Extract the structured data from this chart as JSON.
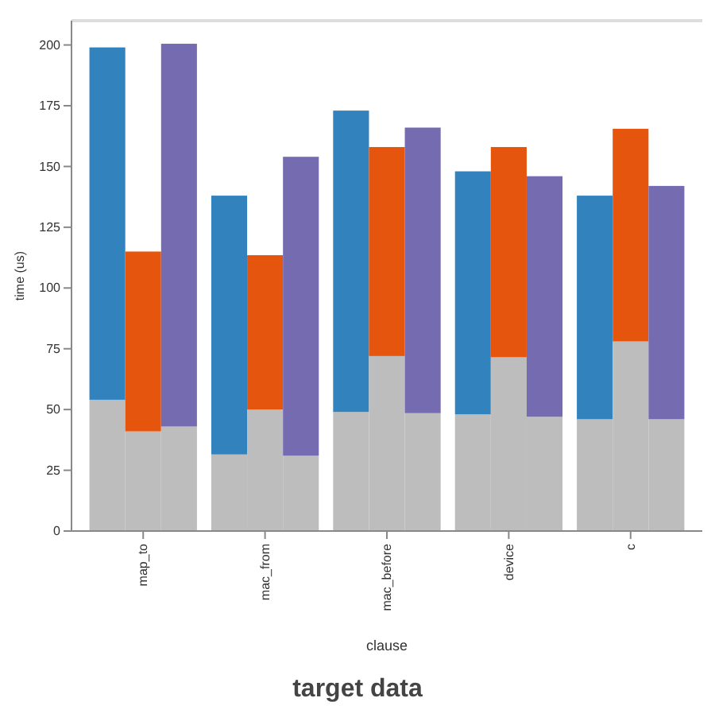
{
  "chart_data": {
    "type": "bar",
    "stacked": true,
    "xlabel": "clause",
    "ylabel": "time (us)",
    "annotations": [
      "target data"
    ],
    "categories": [
      null,
      "map_to",
      null,
      null,
      null,
      "mac_from",
      null,
      null,
      null,
      "mac_before",
      null,
      null,
      null,
      "device",
      null,
      null,
      null,
      "c",
      null
    ],
    "ylim": [
      0,
      210
    ],
    "yticks": [
      0,
      25,
      50,
      75,
      100,
      125,
      150,
      175,
      200
    ],
    "grid": false,
    "series": [
      {
        "color": "#bdbdbd",
        "values": [
          54,
          41,
          43,
          null,
          31.5,
          50,
          31,
          null,
          49,
          72,
          48.5,
          null,
          48,
          71.5,
          47,
          null,
          46,
          78,
          46
        ]
      },
      {
        "colors": [
          "#3182bd",
          "#e6550d",
          "#756bb1",
          null,
          "#3182bd",
          "#e6550d",
          "#756bb1",
          null,
          "#3182bd",
          "#e6550d",
          "#756bb1",
          null,
          "#3182bd",
          "#e6550d",
          "#756bb1",
          null,
          "#3182bd",
          "#e6550d",
          "#756bb1"
        ],
        "values": [
          145,
          74,
          157.5,
          null,
          106.5,
          63.5,
          123,
          null,
          124,
          86,
          117.5,
          null,
          100,
          86.5,
          99,
          null,
          92,
          87.5,
          96
        ]
      }
    ]
  }
}
